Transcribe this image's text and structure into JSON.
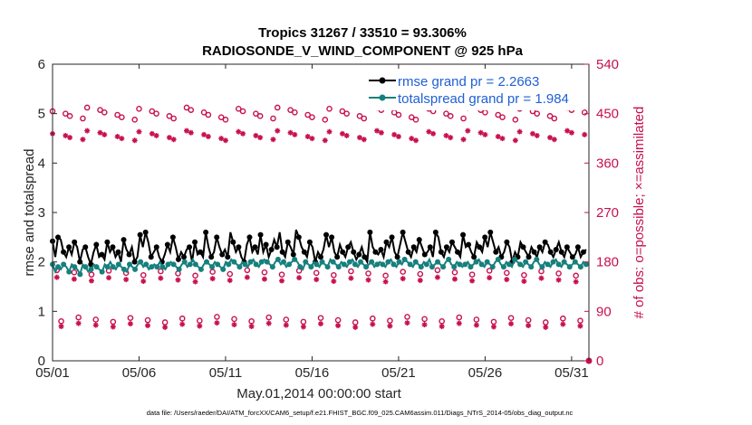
{
  "chart_data": {
    "type": "line",
    "title": "Tropics 31267 / 33510 = 93.306%",
    "subtitle": "RADIOSONDE_V_WIND_COMPONENT @ 925 hPa",
    "xlabel": "May.01,2014 00:00:00 start",
    "ylabel": "rmse and totalspread",
    "ylabel_right": "# of obs: o=possible; ×=assimilated",
    "x_ticks": [
      "05/01",
      "05/06",
      "05/11",
      "05/16",
      "05/21",
      "05/26",
      "05/31"
    ],
    "x_tick_days": [
      1,
      6,
      11,
      16,
      21,
      26,
      31
    ],
    "xlim": [
      1,
      32
    ],
    "ylim": [
      0,
      6
    ],
    "y_ticks": [
      "0",
      "1",
      "2",
      "3",
      "4",
      "5",
      "6"
    ],
    "ylim_right": [
      0,
      540
    ],
    "y_ticks_right": [
      "0",
      "90",
      "180",
      "270",
      "360",
      "450",
      "540"
    ],
    "legend_position": "top-right",
    "colors": {
      "rmse": "#000000",
      "spread": "#16807d",
      "obs": "#c8104e",
      "legend_text": "#1f5fd6"
    },
    "series": [
      {
        "name": "rmse grand pr = 2.2663",
        "axis": "left",
        "values": [
          2.42,
          2.1,
          2.5,
          2.45,
          2.2,
          2.1,
          2.3,
          2.15,
          2.4,
          2.3,
          2.0,
          2.25,
          2.3,
          2.1,
          1.95,
          2.2,
          2.35,
          2.1,
          2.15,
          2.05,
          2.4,
          2.2,
          2.3,
          2.1,
          2.2,
          2.0,
          2.45,
          2.25,
          2.15,
          2.3,
          2.0,
          2.1,
          2.55,
          2.3,
          2.6,
          2.4,
          2.1,
          2.2,
          2.3,
          2.1,
          2.0,
          2.15,
          2.35,
          2.2,
          2.5,
          2.3,
          2.05,
          2.2,
          2.1,
          2.25,
          2.3,
          2.0,
          2.4,
          2.15,
          2.2,
          2.1,
          2.6,
          2.3,
          2.1,
          2.2,
          2.5,
          2.3,
          2.15,
          2.25,
          2.1,
          2.6,
          2.4,
          2.2,
          2.3,
          2.1,
          2.0,
          2.35,
          2.5,
          2.2,
          2.3,
          2.15,
          2.55,
          2.2,
          2.35,
          2.1,
          2.25,
          2.45,
          2.3,
          2.6,
          2.2,
          2.1,
          2.4,
          2.3,
          2.15,
          2.65,
          2.5,
          2.3,
          2.2,
          2.1,
          2.4,
          2.3,
          2.0,
          2.2,
          2.1,
          2.25,
          2.55,
          2.3,
          2.5,
          2.2,
          2.1,
          2.35,
          2.2,
          2.1,
          2.3,
          2.4,
          2.2,
          2.05,
          2.15,
          2.3,
          2.1,
          2.0,
          2.6,
          2.3,
          2.2,
          2.15,
          2.25,
          2.1,
          2.4,
          2.3,
          2.5,
          2.2,
          2.1,
          2.35,
          2.6,
          2.4,
          2.2,
          2.1,
          2.3,
          2.2,
          2.45,
          2.3,
          2.15,
          2.2,
          2.3,
          2.1,
          2.6,
          2.5,
          2.2,
          2.1,
          2.3,
          2.2,
          2.4,
          2.3,
          2.2,
          2.1,
          2.55,
          2.3,
          2.35,
          2.2,
          2.1,
          2.4,
          2.3,
          2.2,
          2.5,
          2.3,
          2.6,
          2.4,
          2.2,
          2.3,
          2.1,
          2.2,
          2.4,
          2.3,
          2.0,
          2.2,
          2.1,
          2.4,
          2.3,
          2.2,
          2.1,
          2.3,
          2.2,
          2.1,
          2.3,
          2.2,
          2.4,
          2.35,
          2.2,
          2.1,
          2.25,
          2.4,
          2.2,
          2.1,
          2.3,
          2.2,
          2.1,
          2.15,
          2.3,
          2.1,
          2.2,
          2.25
        ]
      },
      {
        "name": "totalspread grand pr = 1.984",
        "axis": "left",
        "values": [
          1.95,
          1.8,
          1.9,
          1.85,
          1.95,
          1.9,
          1.8,
          1.95,
          1.9,
          1.85,
          1.75,
          1.95,
          1.9,
          1.8,
          1.85,
          1.95,
          1.9,
          1.85,
          1.8,
          1.95,
          1.9,
          2.0,
          1.9,
          1.85,
          1.95,
          1.9,
          1.85,
          1.8,
          1.95,
          1.9,
          1.85,
          1.95,
          2.0,
          1.9,
          1.95,
          1.85,
          1.9,
          1.95,
          1.9,
          2.0,
          1.9,
          1.85,
          1.95,
          2.0,
          1.95,
          1.9,
          1.85,
          1.95,
          2.0,
          1.9,
          1.95,
          2.05,
          1.95,
          1.9,
          1.85,
          1.95,
          2.0,
          1.95,
          1.9,
          2.0,
          1.95,
          1.9,
          1.85,
          2.0,
          1.95,
          2.05,
          2.0,
          1.95,
          1.9,
          2.0,
          1.95,
          1.9,
          2.0,
          2.05,
          1.95,
          1.9,
          2.0,
          2.05,
          2.0,
          1.95,
          1.9,
          2.0,
          2.05,
          1.95,
          2.0,
          1.9,
          1.95,
          2.0,
          2.05,
          2.0,
          1.9,
          1.85,
          2.0,
          1.95,
          1.9,
          2.0,
          1.95,
          1.9,
          2.0,
          1.95,
          1.9,
          2.05,
          2.0,
          1.95,
          1.9,
          2.0,
          1.95,
          1.9,
          2.0,
          2.05,
          1.95,
          1.9,
          2.0,
          1.95,
          1.9,
          1.95,
          2.0,
          1.9,
          1.95,
          2.0,
          1.95,
          1.9,
          2.0,
          2.05,
          1.95,
          1.9,
          2.0,
          1.95,
          2.05,
          2.0,
          1.95,
          1.9,
          2.0,
          1.95,
          1.9,
          2.0,
          1.95,
          2.05,
          1.9,
          1.95,
          2.0,
          1.95,
          1.9,
          2.0,
          2.05,
          1.95,
          1.9,
          2.0,
          1.95,
          1.9,
          1.95,
          2.0,
          1.9,
          1.95,
          2.0,
          2.05,
          1.95,
          1.9,
          2.0,
          1.95,
          1.9,
          2.0,
          2.05,
          1.95,
          1.9,
          2.0,
          1.95,
          1.9,
          2.05,
          2.0,
          1.95,
          1.9,
          2.0,
          1.95,
          1.9,
          2.0,
          2.05,
          1.95,
          1.9,
          2.0,
          1.95,
          1.9,
          2.0,
          2.05,
          1.95,
          1.9,
          2.0,
          1.95,
          1.9,
          1.95,
          2.0,
          1.95,
          1.9,
          2.0,
          1.95
        ]
      }
    ],
    "obs_series": [
      {
        "name": "possible",
        "marker": "o",
        "axis": "right",
        "level_counts": [
          450,
          160,
          75
        ]
      },
      {
        "name": "assimilated",
        "marker": "*",
        "axis": "right",
        "level_counts": [
          410,
          148,
          65
        ]
      }
    ],
    "footer": "data file: /Users/raeder/DAI/ATM_forcXX/CAM6_setup/f.e21.FHIST_BGC.f09_025.CAM6assim.011/Diags_NTrS_2014-05/obs_diag_output.nc"
  }
}
